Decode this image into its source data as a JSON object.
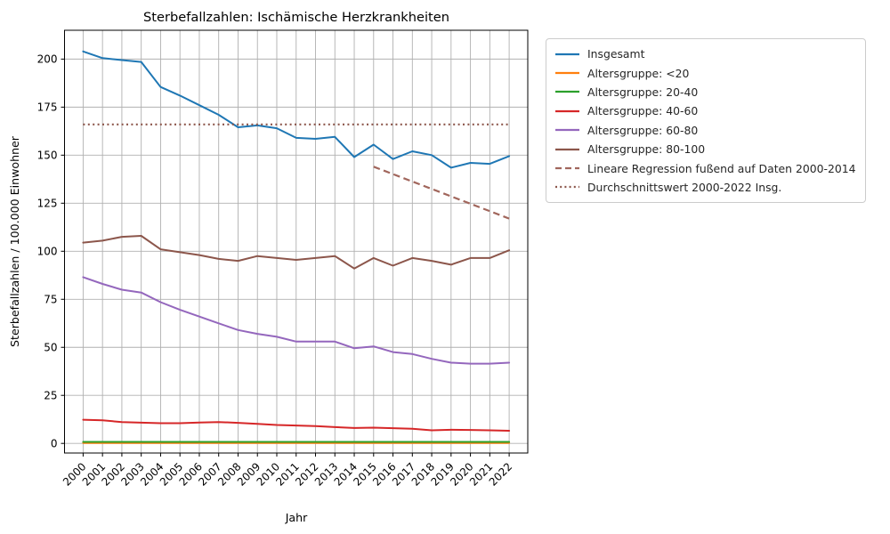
{
  "title": "Sterbefallzahlen: Ischämische Herzkrankheiten",
  "xlabel": "Jahr",
  "ylabel": "Sterbefallzahlen / 100.000 Einwohner",
  "chart_data": {
    "type": "line",
    "x": [
      2000,
      2001,
      2002,
      2003,
      2004,
      2005,
      2006,
      2007,
      2008,
      2009,
      2010,
      2011,
      2012,
      2013,
      2014,
      2015,
      2016,
      2017,
      2018,
      2019,
      2020,
      2021,
      2022
    ],
    "ylim": [
      -5,
      215
    ],
    "yticks": [
      0,
      25,
      50,
      75,
      100,
      125,
      150,
      175,
      200
    ],
    "grid": true,
    "xtick_rotation": 45,
    "legend_position": "upper right outside plot",
    "title": "Sterbefallzahlen: Ischämische Herzkrankheiten",
    "xlabel": "Jahr",
    "ylabel": "Sterbefallzahlen / 100.000 Einwohner",
    "series": [
      {
        "name": "Insgesamt",
        "color": "#1f77b4",
        "style": "solid",
        "values": [
          204,
          200.5,
          199.5,
          198.5,
          185.5,
          181,
          176,
          171,
          164.5,
          165.5,
          164,
          159,
          158.5,
          159.5,
          149,
          155.5,
          148,
          152,
          150,
          143.5,
          146,
          145.5,
          149.5
        ]
      },
      {
        "name": "Altersgruppe: <20",
        "color": "#ff7f0e",
        "style": "solid",
        "values": [
          0.2,
          0.2,
          0.2,
          0.2,
          0.2,
          0.2,
          0.2,
          0.2,
          0.2,
          0.2,
          0.2,
          0.2,
          0.2,
          0.2,
          0.2,
          0.2,
          0.2,
          0.2,
          0.2,
          0.2,
          0.2,
          0.2,
          0.2
        ]
      },
      {
        "name": "Altersgruppe: 20-40",
        "color": "#2ca02c",
        "style": "solid",
        "values": [
          0.8,
          0.8,
          0.8,
          0.8,
          0.8,
          0.8,
          0.8,
          0.8,
          0.8,
          0.8,
          0.8,
          0.8,
          0.8,
          0.8,
          0.8,
          0.8,
          0.8,
          0.8,
          0.8,
          0.8,
          0.8,
          0.8,
          0.8
        ]
      },
      {
        "name": "Altersgruppe: 40-60",
        "color": "#d62728",
        "style": "solid",
        "values": [
          12.3,
          12,
          11.1,
          10.8,
          10.5,
          10.5,
          10.9,
          11.1,
          10.7,
          10.2,
          9.6,
          9.3,
          9,
          8.5,
          8,
          8.2,
          7.9,
          7.6,
          6.8,
          7.1,
          7,
          6.8,
          6.6
        ]
      },
      {
        "name": "Altersgruppe: 60-80",
        "color": "#9467bd",
        "style": "solid",
        "values": [
          86.5,
          83,
          80,
          78.5,
          73.5,
          69.5,
          66,
          62.5,
          59,
          57,
          55.5,
          53,
          53,
          53,
          49.5,
          50.5,
          47.5,
          46.5,
          44,
          42,
          41.5,
          41.5,
          42
        ]
      },
      {
        "name": "Altersgruppe: 80-100",
        "color": "#8c564b",
        "style": "solid",
        "values": [
          104.5,
          105.5,
          107.5,
          108,
          101,
          99.5,
          98,
          96,
          95,
          97.5,
          96.5,
          95.5,
          96.5,
          97.5,
          91,
          96.5,
          92.5,
          96.5,
          95,
          93,
          96.5,
          96.5,
          100.5
        ]
      },
      {
        "name": "Lineare Regression fußend auf Daten 2000-2014",
        "color": "#a1665c",
        "style": "dashed",
        "x_start": 2015,
        "x_end": 2022,
        "y_start": 144,
        "y_end": 117
      },
      {
        "name": "Durchschnittswert 2000-2022 Insg.",
        "color": "#8c564b",
        "style": "dotted",
        "x_start": 2000,
        "x_end": 2022,
        "value": 166
      }
    ]
  }
}
